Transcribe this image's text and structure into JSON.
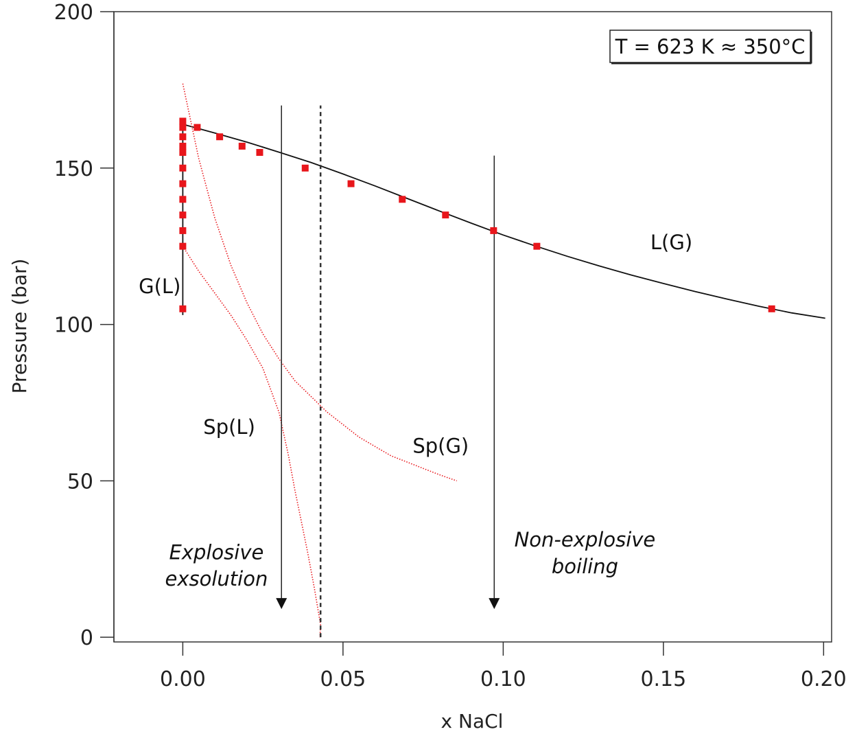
{
  "chart_data": {
    "type": "scatter",
    "xlabel": "x NaCl",
    "ylabel": "Pressure (bar)",
    "xlim": [
      -0.0215,
      0.2025
    ],
    "ylim": [
      -1.5,
      200
    ],
    "x_ticks": [
      {
        "value": 0.0,
        "label": "0.00"
      },
      {
        "value": 0.05,
        "label": "0.05"
      },
      {
        "value": 0.1,
        "label": "0.10"
      },
      {
        "value": 0.15,
        "label": "0.15"
      },
      {
        "value": 0.2,
        "label": "0.20"
      }
    ],
    "y_ticks": [
      {
        "value": 0,
        "label": "0"
      },
      {
        "value": 50,
        "label": "50"
      },
      {
        "value": 100,
        "label": "100"
      },
      {
        "value": 150,
        "label": "150"
      },
      {
        "value": 200,
        "label": "200"
      }
    ],
    "legend_box": {
      "text": "T = 623 K ≈ 350°C",
      "placement": "top-right"
    },
    "series": [
      {
        "kind": "points",
        "color": "#e8161b",
        "points": [
          [
            0.0,
            165
          ],
          [
            0.0,
            163
          ],
          [
            0.0,
            160
          ],
          [
            0.0,
            157
          ],
          [
            0.0,
            155
          ],
          [
            0.0,
            150
          ],
          [
            0.0,
            145
          ],
          [
            0.0,
            140
          ],
          [
            0.0,
            135
          ],
          [
            0.0,
            130
          ],
          [
            0.0,
            125
          ],
          [
            0.0,
            105
          ],
          [
            0.0045,
            163
          ],
          [
            0.0115,
            160
          ],
          [
            0.0185,
            157
          ],
          [
            0.024,
            155
          ],
          [
            0.0382,
            150
          ],
          [
            0.0525,
            145
          ],
          [
            0.0685,
            140
          ],
          [
            0.082,
            135
          ],
          [
            0.097,
            130
          ],
          [
            0.1105,
            125
          ],
          [
            0.1838,
            105
          ]
        ]
      },
      {
        "name": "L(G)",
        "kind": "line",
        "color": "#111111",
        "points": [
          [
            0.0,
            164
          ],
          [
            0.01,
            161.2
          ],
          [
            0.02,
            158.3
          ],
          [
            0.03,
            155.1
          ],
          [
            0.04,
            151.8
          ],
          [
            0.05,
            148.1
          ],
          [
            0.06,
            144.3
          ],
          [
            0.07,
            140.3
          ],
          [
            0.08,
            136.3
          ],
          [
            0.09,
            132.4
          ],
          [
            0.1,
            128.6
          ],
          [
            0.11,
            125.1
          ],
          [
            0.12,
            121.8
          ],
          [
            0.13,
            118.7
          ],
          [
            0.14,
            115.8
          ],
          [
            0.15,
            113.1
          ],
          [
            0.16,
            110.5
          ],
          [
            0.17,
            108.1
          ],
          [
            0.18,
            105.8
          ],
          [
            0.19,
            103.7
          ],
          [
            0.2005,
            102.0
          ]
        ]
      },
      {
        "name": "G(L)",
        "kind": "line",
        "color": "#111111",
        "points": [
          [
            0.0,
            103
          ],
          [
            0.0,
            164
          ]
        ]
      },
      {
        "name": "Sp(L)",
        "kind": "dotted-line",
        "color": "#e8161b",
        "points": [
          [
            0.0,
            125
          ],
          [
            0.005,
            117
          ],
          [
            0.01,
            110
          ],
          [
            0.015,
            103
          ],
          [
            0.02,
            95
          ],
          [
            0.025,
            86
          ],
          [
            0.03,
            72
          ],
          [
            0.033,
            58
          ],
          [
            0.035,
            47
          ],
          [
            0.037,
            37
          ],
          [
            0.039,
            27
          ],
          [
            0.041,
            16
          ],
          [
            0.043,
            4
          ],
          [
            0.0428,
            0
          ]
        ]
      },
      {
        "name": "Sp(G)",
        "kind": "dotted-line",
        "color": "#e8161b",
        "points": [
          [
            0.0,
            177
          ],
          [
            0.005,
            153
          ],
          [
            0.01,
            134
          ],
          [
            0.015,
            119
          ],
          [
            0.02,
            107
          ],
          [
            0.025,
            97
          ],
          [
            0.03,
            89
          ],
          [
            0.035,
            82
          ],
          [
            0.04,
            77
          ],
          [
            0.045,
            72
          ],
          [
            0.05,
            68
          ],
          [
            0.055,
            64
          ],
          [
            0.06,
            61
          ],
          [
            0.065,
            58
          ],
          [
            0.07,
            56
          ],
          [
            0.075,
            54
          ],
          [
            0.08,
            52
          ],
          [
            0.0855,
            50
          ]
        ]
      }
    ],
    "vertical_lines": [
      {
        "x": 0.043,
        "y_from": 0,
        "y_to": 170,
        "style": "dashed"
      }
    ],
    "arrows": [
      {
        "x": 0.0308,
        "y_from": 170,
        "y_to": 9
      },
      {
        "x": 0.0972,
        "y_from": 154,
        "y_to": 9
      }
    ],
    "annotations": [
      {
        "id": "lg",
        "text": "L(G)",
        "x": 0.1525,
        "y": 124,
        "italic": false,
        "anchor": "middle"
      },
      {
        "id": "gl",
        "text": "G(L)",
        "x": -0.0072,
        "y": 110,
        "italic": false,
        "anchor": "middle"
      },
      {
        "id": "spl",
        "text": "Sp(L)",
        "x": 0.0145,
        "y": 65,
        "italic": false,
        "anchor": "middle"
      },
      {
        "id": "spg",
        "text": "Sp(G)",
        "x": 0.0805,
        "y": 59,
        "italic": false,
        "anchor": "middle"
      },
      {
        "id": "expl1",
        "text": "Explosive",
        "x": 0.0105,
        "y": 25,
        "italic": true,
        "anchor": "middle"
      },
      {
        "id": "expl2",
        "text": "exsolution",
        "x": 0.0105,
        "y": 16.5,
        "italic": true,
        "anchor": "middle"
      },
      {
        "id": "nonexp1",
        "text": "Non-explosive",
        "x": 0.1255,
        "y": 29,
        "italic": true,
        "anchor": "middle"
      },
      {
        "id": "nonexp2",
        "text": "boiling",
        "x": 0.1255,
        "y": 20.5,
        "italic": true,
        "anchor": "middle"
      }
    ]
  }
}
